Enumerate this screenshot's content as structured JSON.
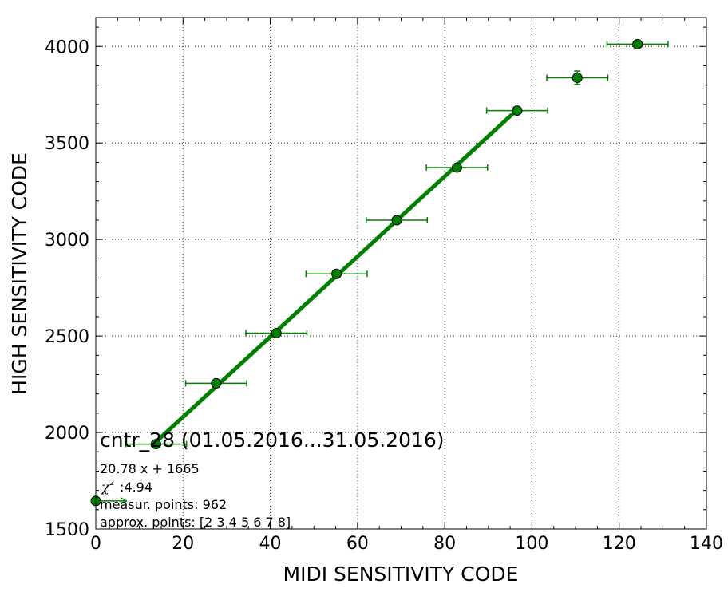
{
  "chart_data": {
    "type": "scatter",
    "xlabel": "MIDI SENSITIVITY CODE",
    "ylabel": "HIGH SENSITIVITY CODE",
    "xlim": [
      0,
      140
    ],
    "ylim": [
      1500,
      4150
    ],
    "x_ticks": [
      0,
      20,
      40,
      60,
      80,
      100,
      120,
      140
    ],
    "y_ticks": [
      1500,
      2000,
      2500,
      3000,
      3500,
      4000
    ],
    "grid": true,
    "color": "#008000",
    "series": [
      {
        "type": "errorbar",
        "points": [
          {
            "x": 0,
            "y": 1645,
            "xerr": 7,
            "yerr": 0
          },
          {
            "x": 13.8,
            "y": 1940,
            "xerr": 7,
            "yerr": 0
          },
          {
            "x": 27.6,
            "y": 2255,
            "xerr": 7,
            "yerr": 0
          },
          {
            "x": 41.4,
            "y": 2515,
            "xerr": 7,
            "yerr": 0
          },
          {
            "x": 55.2,
            "y": 2822,
            "xerr": 7,
            "yerr": 0
          },
          {
            "x": 69,
            "y": 3100,
            "xerr": 7,
            "yerr": 0
          },
          {
            "x": 82.8,
            "y": 3373,
            "xerr": 7,
            "yerr": 0
          },
          {
            "x": 96.6,
            "y": 3668,
            "xerr": 7,
            "yerr": 0
          },
          {
            "x": 110.4,
            "y": 3838,
            "xerr": 7,
            "yerr": 35
          },
          {
            "x": 124.2,
            "y": 4012,
            "xerr": 7,
            "yerr": 0
          }
        ]
      },
      {
        "type": "line",
        "description_hidden": true,
        "slope": 20.78,
        "intercept": 1665,
        "x_range": [
          13.8,
          96.6
        ]
      }
    ]
  },
  "annotation": {
    "title": "cntr_28 (01.05.2016...31.05.2016)",
    "equation": "20.78 x + 1665",
    "chi_symbol": "χ",
    "chi_sup": "2",
    "chi_value": ":4.94",
    "measur_points": "measur. points: 962",
    "approx_points": "approx. points: [2 3 4 5 6 7 8]"
  }
}
